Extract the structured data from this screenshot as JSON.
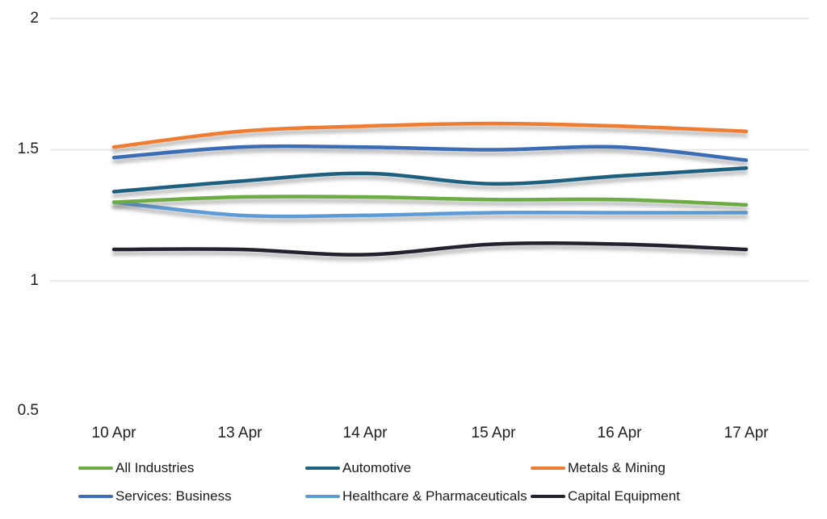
{
  "chart_data": {
    "type": "line",
    "title": "",
    "xlabel": "",
    "ylabel": "",
    "categories": [
      "10 Apr",
      "13 Apr",
      "14 Apr",
      "15 Apr",
      "16 Apr",
      "17 Apr"
    ],
    "series": [
      {
        "name": "All Industries",
        "color": "#6DAB44",
        "values": [
          1.3,
          1.32,
          1.32,
          1.31,
          1.31,
          1.29
        ]
      },
      {
        "name": "Automotive",
        "color": "#1F5F7F",
        "values": [
          1.34,
          1.38,
          1.41,
          1.37,
          1.4,
          1.43
        ]
      },
      {
        "name": "Metals & Mining",
        "color": "#EE7D31",
        "values": [
          1.51,
          1.57,
          1.59,
          1.6,
          1.59,
          1.57
        ]
      },
      {
        "name": "Services: Business",
        "color": "#3A6DB5",
        "values": [
          1.47,
          1.51,
          1.51,
          1.5,
          1.51,
          1.46
        ]
      },
      {
        "name": "Healthcare & Pharmaceuticals",
        "color": "#5B9BD5",
        "values": [
          1.3,
          1.25,
          1.25,
          1.26,
          1.26,
          1.26
        ]
      },
      {
        "name": "Capital Equipment",
        "color": "#21222E",
        "values": [
          1.12,
          1.12,
          1.1,
          1.14,
          1.14,
          1.12
        ]
      }
    ],
    "ylim": [
      0.5,
      2
    ],
    "y_tick_labels": [
      "2",
      "1.5",
      "1",
      "0.5"
    ],
    "y_tick_values": [
      2,
      1.5,
      1,
      0.5
    ],
    "y_gridline_values": [
      2,
      1.5,
      1
    ],
    "grid": "horizontal only, light gray",
    "line_style": "smoothed, thick, drop shadow",
    "legend_position": "bottom, two rows, three columns",
    "legend_grid": [
      [
        "All Industries",
        "Automotive",
        "Metals & Mining"
      ],
      [
        "Services: Business",
        "Healthcare & Pharmaceuticals",
        "Capital Equipment"
      ]
    ],
    "colors": {
      "gridline": "#E7E7E7",
      "axis_text": "#1f1f1f",
      "background": "#ffffff"
    }
  }
}
